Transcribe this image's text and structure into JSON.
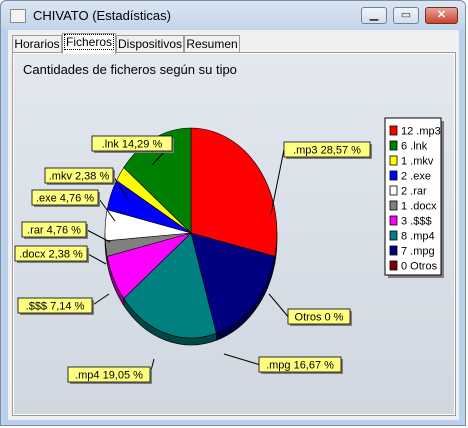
{
  "window": {
    "title": "CHIVATO (Estadísticas)",
    "minimize_icon": "minimize-icon",
    "maximize_icon": "maximize-icon",
    "close_icon": "close-icon"
  },
  "tabs": [
    {
      "label": "Horarios",
      "active": false
    },
    {
      "label": "Ficheros",
      "active": true
    },
    {
      "label": "Dispositivos",
      "active": false
    },
    {
      "label": "Resumen",
      "active": false
    }
  ],
  "chart_data": {
    "type": "pie",
    "title": "Cantidades de ficheros según su tipo",
    "slices": [
      {
        "label": ".mp3",
        "count": 12,
        "percent": 28.57,
        "color": "#ff0000",
        "callout": ".mp3 28,57 %",
        "legend": "12 .mp3"
      },
      {
        "label": ".mpg",
        "count": 7,
        "percent": 16.67,
        "color": "#000080",
        "callout": ".mpg 16,67 %",
        "legend": "7 .mpg"
      },
      {
        "label": ".mp4",
        "count": 8,
        "percent": 19.05,
        "color": "#008080",
        "callout": ".mp4 19,05 %",
        "legend": "8 .mp4"
      },
      {
        "label": ".$$$",
        "count": 3,
        "percent": 7.14,
        "color": "#ff00ff",
        "callout": ".$$$ 7,14 %",
        "legend": "3 .$$$"
      },
      {
        "label": ".docx",
        "count": 1,
        "percent": 2.38,
        "color": "#808080",
        "callout": ".docx 2,38 %",
        "legend": "1 .docx"
      },
      {
        "label": ".rar",
        "count": 2,
        "percent": 4.76,
        "color": "#ffffff",
        "callout": ".rar 4,76 %",
        "legend": "2 .rar"
      },
      {
        "label": ".exe",
        "count": 2,
        "percent": 4.76,
        "color": "#0000ff",
        "callout": ".exe 4,76 %",
        "legend": "2 .exe"
      },
      {
        "label": ".mkv",
        "count": 1,
        "percent": 2.38,
        "color": "#ffff00",
        "callout": ".mkv 2,38 %",
        "legend": "1 .mkv"
      },
      {
        "label": ".lnk",
        "count": 6,
        "percent": 14.29,
        "color": "#008000",
        "callout": ".lnk 14,29 %",
        "legend": "6 .lnk"
      },
      {
        "label": "Otros",
        "count": 0,
        "percent": 0,
        "color": "#800000",
        "callout": "Otros 0 %",
        "legend": "0 Otros"
      }
    ],
    "legend_order": [
      ".mp3",
      ".lnk",
      ".mkv",
      ".exe",
      ".rar",
      ".docx",
      ".$$$",
      ".mp4",
      ".mpg",
      "Otros"
    ],
    "legend_position": "right",
    "label_background": "#ffff80"
  }
}
